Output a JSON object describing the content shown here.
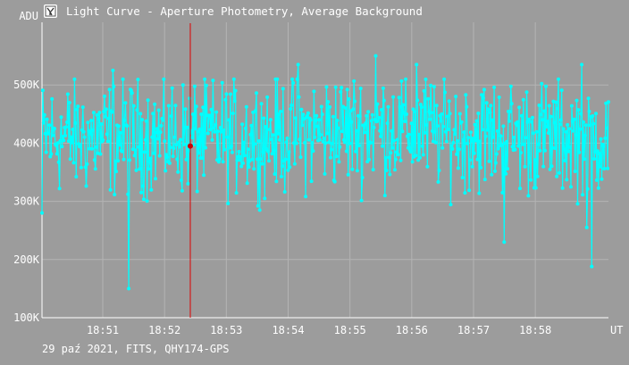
{
  "window": {
    "title": "Light Curve - Aperture Photometry, Average Background",
    "icon": "light-curve-app-icon"
  },
  "footer": {
    "caption": "29 paź 2021, FITS, QHY174-GPS"
  },
  "colors": {
    "background": "#9c9c9c",
    "grid": "#b4b4b4",
    "series": "#00ffff",
    "cursor_line": "#dd0000",
    "cursor_marker": "#cc0000",
    "text": "#ffffff"
  },
  "chart_data": {
    "type": "line",
    "title": "Light Curve - Aperture Photometry, Average Background",
    "ylabel": "ADU",
    "xlabel": "UT",
    "ylim": [
      100000,
      600000
    ],
    "xlim": [
      "18:50:01",
      "18:59:11"
    ],
    "x_ticks": [
      "18:51",
      "18:52",
      "18:53",
      "18:54",
      "18:55",
      "18:56",
      "18:57",
      "18:58"
    ],
    "y_ticks": [
      {
        "value": 100000,
        "label": "100K"
      },
      {
        "value": 200000,
        "label": "200K"
      },
      {
        "value": 300000,
        "label": "300K"
      },
      {
        "value": 400000,
        "label": "400K"
      },
      {
        "value": 500000,
        "label": "500K"
      }
    ],
    "grid": true,
    "cursor": {
      "time": "18:52:25",
      "value": 395000
    },
    "series": [
      {
        "approx_mean": 410000,
        "approx_spread": [
          300000,
          500000
        ],
        "notable_points": [
          {
            "time": "18:50:01",
            "value": 280000
          },
          {
            "time": "18:51:25",
            "value": 150000
          },
          {
            "time": "18:51:10",
            "value": 525000
          },
          {
            "time": "18:54:10",
            "value": 535000
          },
          {
            "time": "18:55:25",
            "value": 550000
          },
          {
            "time": "18:56:05",
            "value": 535000
          },
          {
            "time": "18:57:30",
            "value": 230000
          },
          {
            "time": "18:58:45",
            "value": 535000
          },
          {
            "time": "18:58:50",
            "value": 255000
          },
          {
            "time": "18:58:55",
            "value": 188000
          }
        ]
      }
    ]
  }
}
